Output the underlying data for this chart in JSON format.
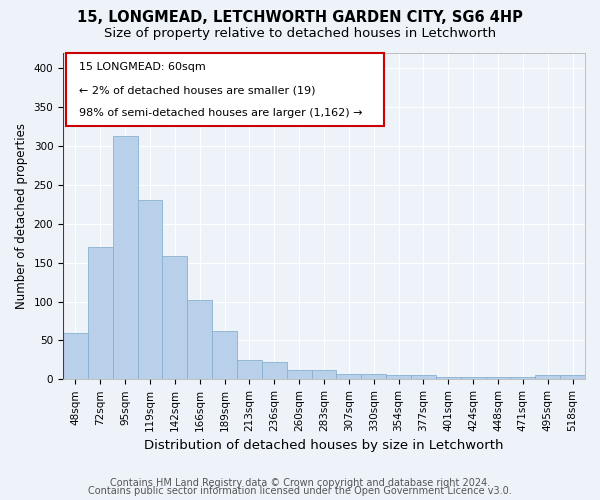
{
  "title1": "15, LONGMEAD, LETCHWORTH GARDEN CITY, SG6 4HP",
  "title2": "Size of property relative to detached houses in Letchworth",
  "xlabel": "Distribution of detached houses by size in Letchworth",
  "ylabel": "Number of detached properties",
  "categories": [
    "48sqm",
    "72sqm",
    "95sqm",
    "119sqm",
    "142sqm",
    "166sqm",
    "189sqm",
    "213sqm",
    "236sqm",
    "260sqm",
    "283sqm",
    "307sqm",
    "330sqm",
    "354sqm",
    "377sqm",
    "401sqm",
    "424sqm",
    "448sqm",
    "471sqm",
    "495sqm",
    "518sqm"
  ],
  "values": [
    60,
    170,
    313,
    230,
    158,
    102,
    62,
    25,
    22,
    12,
    12,
    7,
    7,
    5,
    5,
    3,
    3,
    3,
    3,
    5,
    5
  ],
  "bar_color": "#b8d0ea",
  "bar_edge_color": "#8ab0d0",
  "annotation_title": "15 LONGMEAD: 60sqm",
  "annotation_line1": "← 2% of detached houses are smaller (19)",
  "annotation_line2": "98% of semi-detached houses are larger (1,162) →",
  "annotation_box_color": "#ffffff",
  "annotation_border_color": "#cc0000",
  "ylim": [
    0,
    420
  ],
  "yticks": [
    0,
    50,
    100,
    150,
    200,
    250,
    300,
    350,
    400
  ],
  "footer1": "Contains HM Land Registry data © Crown copyright and database right 2024.",
  "footer2": "Contains public sector information licensed under the Open Government Licence v3.0.",
  "background_color": "#eef3fa",
  "plot_bg_color": "#eef3fa",
  "grid_color": "#ffffff",
  "title1_fontsize": 10.5,
  "title2_fontsize": 9.5,
  "xlabel_fontsize": 9.5,
  "ylabel_fontsize": 8.5,
  "tick_fontsize": 7.5,
  "annotation_fontsize": 8,
  "footer_fontsize": 7
}
